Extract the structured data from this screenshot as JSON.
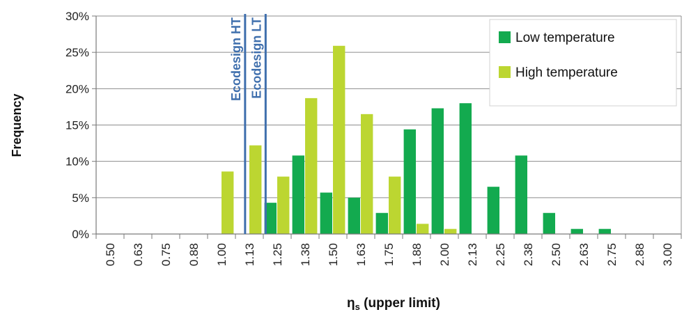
{
  "chart_data": {
    "type": "bar",
    "xlabel_main": "η",
    "xlabel_sub": "s",
    "xlabel_rest": " (upper limit)",
    "ylabel": "Frequency",
    "ylim": [
      0,
      30
    ],
    "yticks": [
      "0%",
      "5%",
      "10%",
      "15%",
      "20%",
      "25%",
      "30%"
    ],
    "ytick_values": [
      0,
      5,
      10,
      15,
      20,
      25,
      30
    ],
    "grid": true,
    "legend_position": "top-right",
    "categories": [
      "0.50",
      "0.63",
      "0.75",
      "0.88",
      "1.00",
      "1.13",
      "1.25",
      "1.38",
      "1.50",
      "1.63",
      "1.75",
      "1.88",
      "2.00",
      "2.13",
      "2.25",
      "2.38",
      "2.50",
      "2.63",
      "2.75",
      "2.88",
      "3.00"
    ],
    "series": [
      {
        "name": "Low temperature",
        "color": "#13aa4f",
        "values": [
          0,
          0,
          0,
          0,
          0,
          0,
          4.3,
          10.8,
          5.7,
          5.0,
          2.9,
          14.4,
          17.3,
          18.0,
          6.5,
          10.8,
          2.9,
          0.7,
          0.7,
          0,
          0
        ]
      },
      {
        "name": "High temperature",
        "color": "#bcd631",
        "values": [
          0,
          0,
          0,
          0,
          8.6,
          12.2,
          7.9,
          18.7,
          25.9,
          16.5,
          7.9,
          1.4,
          0.7,
          0,
          0,
          0,
          0,
          0,
          0,
          0,
          0
        ]
      }
    ],
    "reference_lines": [
      {
        "label": "Ecodesign HT",
        "x_value": 1.11,
        "color": "#3f6fad"
      },
      {
        "label": "Ecodesign LT",
        "x_value": 1.2,
        "color": "#3f6fad"
      }
    ]
  }
}
